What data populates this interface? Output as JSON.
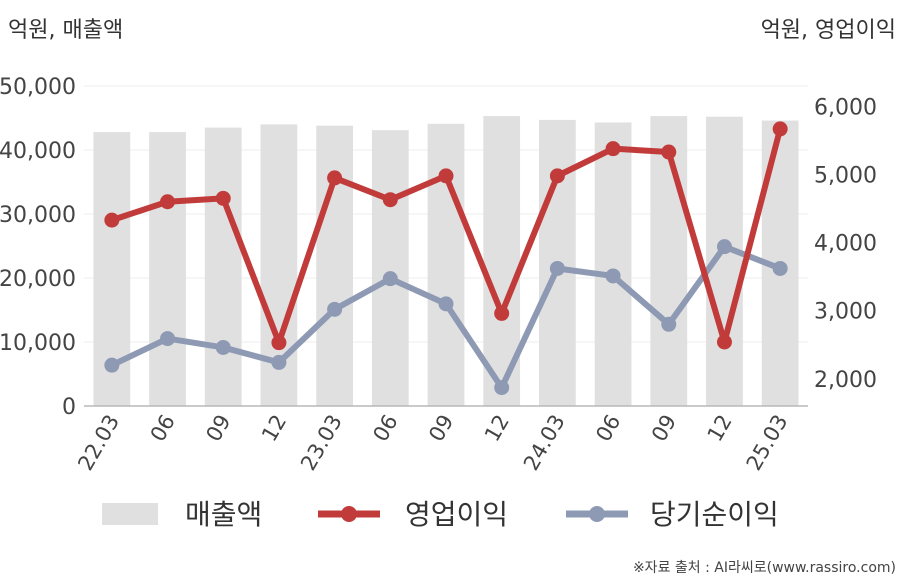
{
  "chart_data": {
    "type": "bar+line",
    "left_unit": "억원, 매출액",
    "right_unit": "억원, 영업이익",
    "categories": [
      "22.03",
      "06",
      "09",
      "12",
      "23.03",
      "06",
      "09",
      "12",
      "24.03",
      "06",
      "09",
      "12",
      "25.03"
    ],
    "left_axis": {
      "min": 0,
      "max": 50000,
      "ticks": [
        "0",
        "10,000",
        "20,000",
        "30,000",
        "40,000",
        "50,000"
      ]
    },
    "right_axis": {
      "min": 1600,
      "max": 6300,
      "ticks": [
        "2,000",
        "3,000",
        "4,000",
        "5,000",
        "6,000"
      ]
    },
    "series": [
      {
        "name": "매출액",
        "kind": "bar",
        "axis": "left",
        "color": "#e0e0e0",
        "values": [
          42800,
          42800,
          43500,
          44000,
          43800,
          43100,
          44100,
          45300,
          44700,
          44300,
          45300,
          45200,
          44600
        ]
      },
      {
        "name": "영업이익",
        "kind": "line",
        "axis": "right",
        "color": "#c23b3b",
        "values": [
          4330,
          4600,
          4650,
          2530,
          4950,
          4630,
          4980,
          2960,
          4980,
          5380,
          5330,
          2540,
          5670
        ]
      },
      {
        "name": "당기순이익",
        "kind": "line",
        "axis": "right",
        "color": "#8e9ab4",
        "values": [
          2200,
          2590,
          2460,
          2240,
          3020,
          3470,
          3100,
          1870,
          3620,
          3510,
          2800,
          3940,
          3620
        ]
      }
    ],
    "legend_position": "bottom",
    "grid": true
  },
  "source_text": "※자료 출처 : AI라씨로(www.rassiro.com)"
}
